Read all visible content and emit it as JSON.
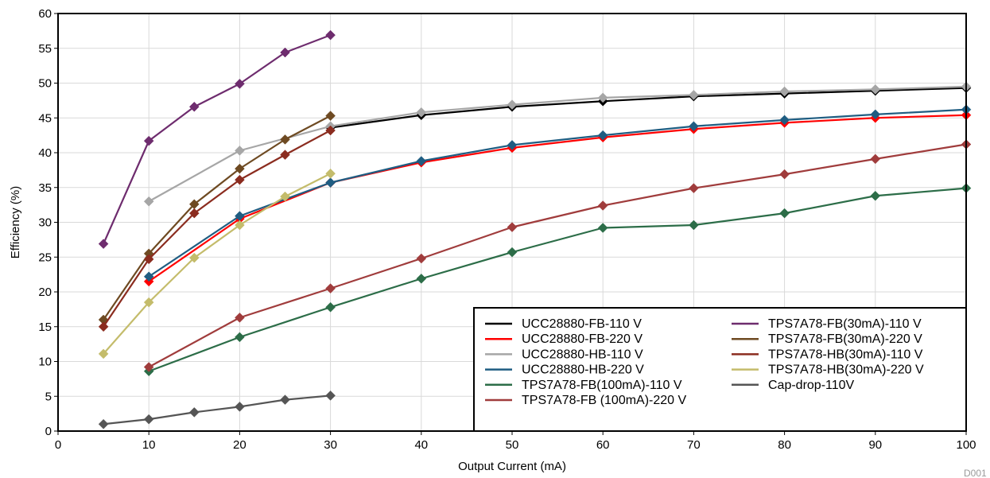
{
  "chart_data": {
    "type": "line",
    "xlabel": "Output Current (mA)",
    "ylabel": "Efficiency (%)",
    "xlim": [
      0,
      100
    ],
    "ylim": [
      0,
      60
    ],
    "xticks": [
      "0",
      "10",
      "20",
      "30",
      "40",
      "50",
      "60",
      "70",
      "80",
      "90",
      "100"
    ],
    "yticks": [
      "0",
      "5",
      "10",
      "15",
      "20",
      "25",
      "30",
      "35",
      "40",
      "45",
      "50",
      "55",
      "60"
    ],
    "grid": true,
    "legend_position": "bottom-right",
    "figure_code": "D001",
    "series": [
      {
        "name": "UCC28880-FB-110 V",
        "color": "#000000",
        "x": [
          30,
          40,
          50,
          60,
          70,
          80,
          90,
          100
        ],
        "y": [
          43.6,
          45.4,
          46.6,
          47.4,
          48.1,
          48.5,
          48.9,
          49.3
        ]
      },
      {
        "name": "UCC28880-FB-220 V",
        "color": "#ff0000",
        "x": [
          10,
          20,
          30,
          40,
          50,
          60,
          70,
          80,
          90,
          100
        ],
        "y": [
          21.5,
          30.5,
          35.7,
          38.6,
          40.7,
          42.2,
          43.4,
          44.3,
          45.0,
          45.4
        ]
      },
      {
        "name": "UCC28880-HB-110 V",
        "color": "#a6a6a6",
        "x": [
          10,
          20,
          30,
          40,
          50,
          60,
          70,
          80,
          90,
          100
        ],
        "y": [
          33.0,
          40.3,
          43.8,
          45.8,
          46.9,
          47.9,
          48.3,
          48.8,
          49.1,
          49.5
        ]
      },
      {
        "name": "UCC28880-HB-220 V",
        "color": "#1f5d82",
        "x": [
          10,
          20,
          30,
          40,
          50,
          60,
          70,
          80,
          90,
          100
        ],
        "y": [
          22.2,
          30.9,
          35.7,
          38.8,
          41.1,
          42.5,
          43.8,
          44.7,
          45.5,
          46.2
        ]
      },
      {
        "name": "TPS7A78-FB(100mA)-110 V",
        "color": "#2c6d48",
        "x": [
          10,
          20,
          30,
          40,
          50,
          60,
          70,
          80,
          90,
          100
        ],
        "y": [
          8.6,
          13.5,
          17.8,
          21.9,
          25.7,
          29.2,
          29.6,
          31.3,
          33.8,
          34.9
        ]
      },
      {
        "name": "TPS7A78-FB (100mA)-220 V",
        "color": "#a03c3c",
        "x": [
          10,
          20,
          30,
          40,
          50,
          60,
          70,
          80,
          90,
          100
        ],
        "y": [
          9.2,
          16.3,
          20.5,
          24.8,
          29.3,
          32.4,
          34.9,
          36.9,
          39.1,
          41.2
        ]
      },
      {
        "name": "TPS7A78-FB(30mA)-110 V",
        "color": "#6e2c6e",
        "x": [
          5,
          10,
          15,
          20,
          25,
          30
        ],
        "y": [
          26.9,
          41.7,
          46.6,
          49.9,
          54.4,
          56.9
        ]
      },
      {
        "name": "TPS7A78-FB(30mA)-220 V",
        "color": "#6e4a22",
        "x": [
          5,
          10,
          15,
          20,
          25,
          30
        ],
        "y": [
          16.0,
          25.5,
          32.6,
          37.7,
          41.9,
          45.3
        ]
      },
      {
        "name": "TPS7A78-HB(30mA)-110 V",
        "color": "#8b2c1f",
        "x": [
          5,
          10,
          15,
          20,
          25,
          30
        ],
        "y": [
          15.0,
          24.7,
          31.3,
          36.1,
          39.7,
          43.2
        ]
      },
      {
        "name": "TPS7A78-HB(30mA)-220 V",
        "color": "#c4bc6b",
        "x": [
          5,
          10,
          15,
          20,
          25,
          30
        ],
        "y": [
          11.1,
          18.5,
          24.9,
          29.6,
          33.7,
          37.0
        ]
      },
      {
        "name": "Cap-drop-110V",
        "color": "#555555",
        "x": [
          5,
          10,
          15,
          20,
          25,
          30
        ],
        "y": [
          1.0,
          1.7,
          2.7,
          3.5,
          4.5,
          5.1
        ]
      }
    ]
  }
}
